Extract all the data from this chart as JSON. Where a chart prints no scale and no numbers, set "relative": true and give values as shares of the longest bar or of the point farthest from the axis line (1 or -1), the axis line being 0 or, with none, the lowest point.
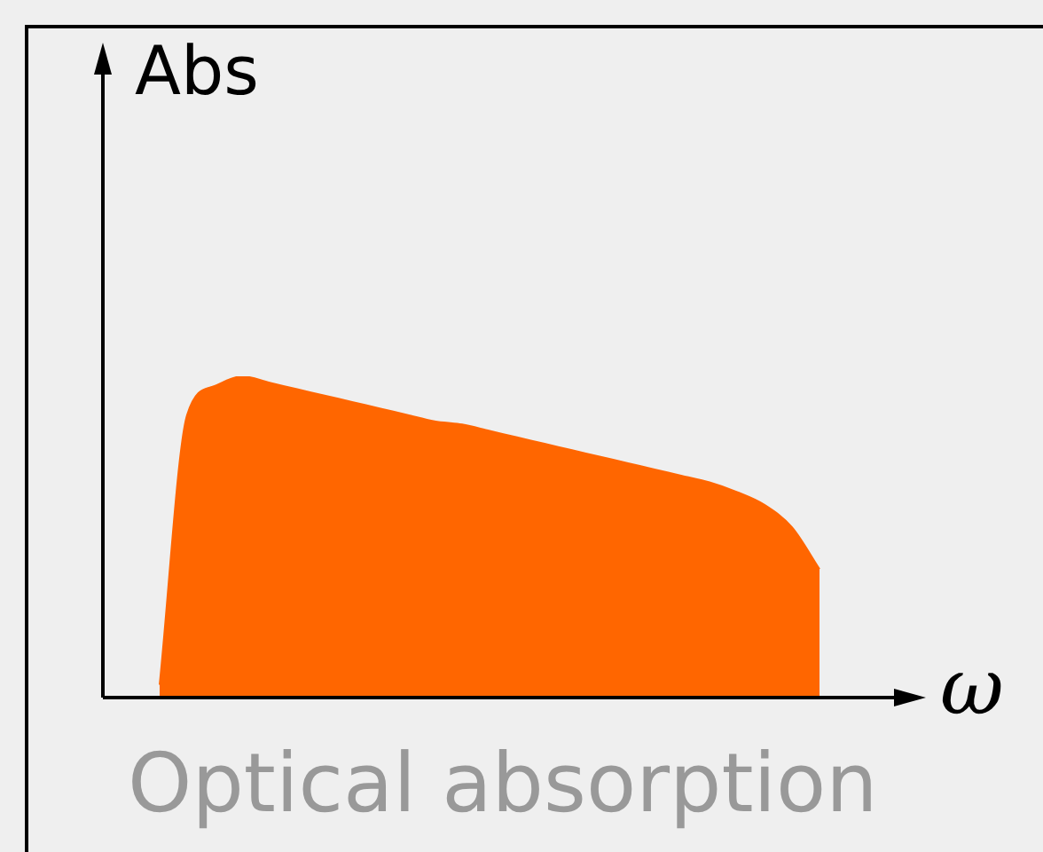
{
  "chart_data": {
    "type": "area",
    "relative": true,
    "title": "Optical absorption",
    "xlabel": "ω",
    "ylabel": "Abs",
    "color": "#ff6600",
    "categories": [
      null,
      null,
      null,
      null,
      null,
      null,
      null,
      null,
      null,
      null,
      null,
      null,
      null,
      null,
      null,
      null,
      null,
      null,
      null,
      null,
      null,
      null,
      null,
      null,
      null
    ],
    "values": [
      0.04,
      0.88,
      0.97,
      1,
      0.98,
      0.96,
      0.94,
      0.92,
      0.9,
      0.88,
      0.86,
      0.85,
      0.83,
      0.81,
      0.79,
      0.77,
      0.75,
      0.73,
      0.71,
      0.69,
      0.67,
      0.64,
      0.6,
      0.53,
      0.4
    ]
  }
}
